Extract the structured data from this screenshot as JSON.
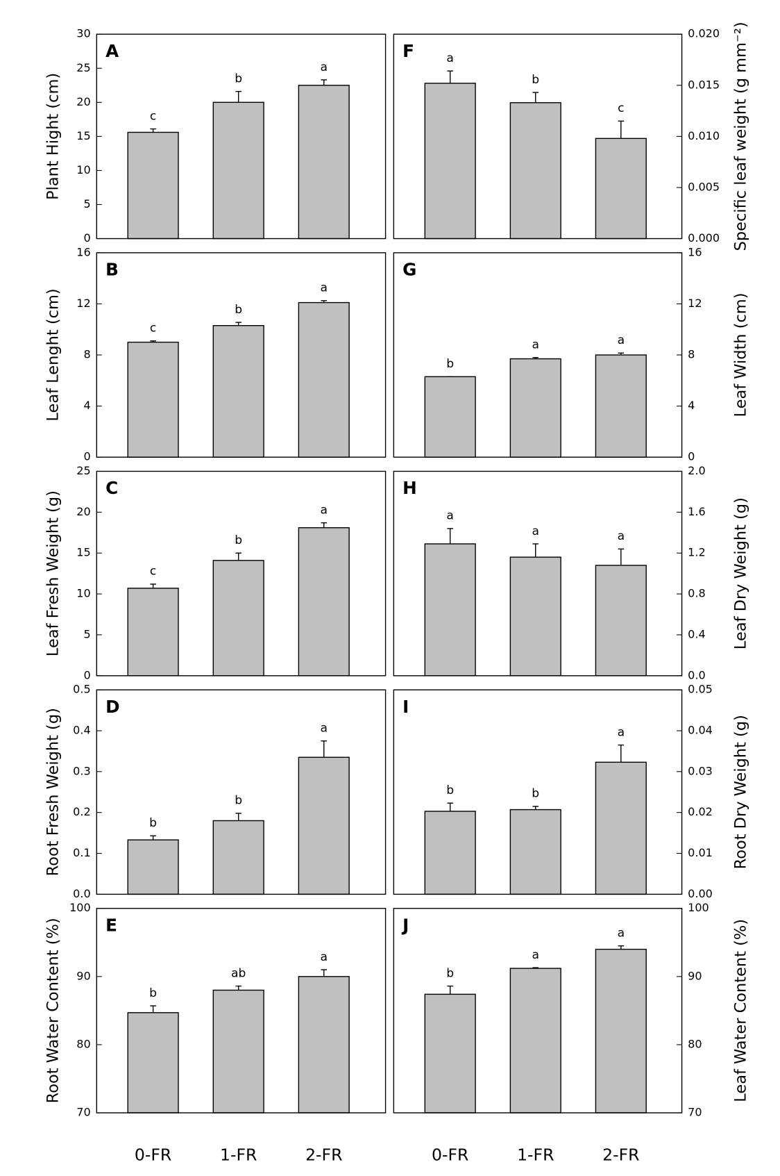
{
  "chart_data": [
    {
      "type": "bar",
      "panel": "A",
      "y_label": "Plant Hight (cm)",
      "ylim": [
        0,
        30
      ],
      "yticks": [
        0,
        5,
        10,
        15,
        20,
        25,
        30
      ],
      "values": [
        15.6,
        20.0,
        22.5
      ],
      "errors": [
        0.5,
        1.6,
        0.8
      ],
      "annotations": [
        "c",
        "b",
        "a"
      ],
      "color": "#c0c0c0"
    },
    {
      "type": "bar",
      "panel": "B",
      "y_label": "Leaf Lenght (cm)",
      "ylim": [
        0,
        16
      ],
      "yticks": [
        0,
        4,
        8,
        12,
        16
      ],
      "values": [
        9.0,
        10.3,
        12.1
      ],
      "errors": [
        0.1,
        0.25,
        0.15
      ],
      "annotations": [
        "c",
        "b",
        "a"
      ],
      "color": "#c0c0c0"
    },
    {
      "type": "bar",
      "panel": "C",
      "y_label": "Leaf Fresh Weight (g)",
      "ylim": [
        0,
        25
      ],
      "yticks": [
        0,
        5,
        10,
        15,
        20,
        25
      ],
      "values": [
        10.7,
        14.1,
        18.1
      ],
      "errors": [
        0.5,
        0.9,
        0.6
      ],
      "annotations": [
        "c",
        "b",
        "a"
      ],
      "color": "#c0c0c0"
    },
    {
      "type": "bar",
      "panel": "D",
      "y_label": "Root Fresh Weight (g)",
      "ylim": [
        0,
        0.5
      ],
      "yticks": [
        {
          "value": 0,
          "label": "0.0"
        },
        0.1,
        0.2,
        0.3,
        0.4,
        0.5
      ],
      "values": [
        0.133,
        0.18,
        0.335
      ],
      "errors": [
        0.01,
        0.018,
        0.04
      ],
      "annotations": [
        "b",
        "b",
        "a"
      ],
      "color": "#c0c0c0"
    },
    {
      "type": "bar",
      "panel": "E",
      "y_label": "Root Water Content (%)",
      "ylim": [
        70,
        100
      ],
      "yticks": [
        70,
        80,
        90,
        100
      ],
      "categories": [
        "0-FR",
        "1-FR",
        "2-FR"
      ],
      "values": [
        84.7,
        88.0,
        90.0
      ],
      "errors": [
        1.0,
        0.6,
        1.0
      ],
      "annotations": [
        "b",
        "ab",
        "a"
      ],
      "color": "#c0c0c0"
    },
    {
      "type": "bar",
      "panel": "F",
      "y_label": "Specific leaf weight (g mm⁻²)",
      "ylim": [
        0,
        0.02
      ],
      "yticks": [
        {
          "value": 0,
          "label": "0.000"
        },
        0.005,
        {
          "value": 0.01,
          "label": "0.010"
        },
        0.015,
        {
          "value": 0.02,
          "label": "0.020"
        }
      ],
      "values": [
        0.0152,
        0.0133,
        0.0098
      ],
      "errors": [
        0.0012,
        0.001,
        0.0017
      ],
      "annotations": [
        "a",
        "b",
        "c"
      ],
      "color": "#c0c0c0"
    },
    {
      "type": "bar",
      "panel": "G",
      "y_label": "Leaf Width (cm)",
      "ylim": [
        0,
        16
      ],
      "yticks": [
        0,
        4,
        8,
        12,
        16
      ],
      "values": [
        6.3,
        7.7,
        8.0
      ],
      "errors": [
        0,
        0.1,
        0.15
      ],
      "annotations": [
        "b",
        "a",
        "a"
      ],
      "color": "#c0c0c0"
    },
    {
      "type": "bar",
      "panel": "H",
      "y_label": "Leaf Dry Weight (g)",
      "ylim": [
        0,
        2
      ],
      "yticks": [
        {
          "value": 0,
          "label": "0.0"
        },
        0.4,
        0.8,
        1.2,
        1.6,
        {
          "value": 2,
          "label": "2.0"
        }
      ],
      "values": [
        1.29,
        1.16,
        1.08
      ],
      "errors": [
        0.15,
        0.13,
        0.16
      ],
      "annotations": [
        "a",
        "a",
        "a"
      ],
      "color": "#c0c0c0"
    },
    {
      "type": "bar",
      "panel": "I",
      "y_label": "Root Dry Weight (g)",
      "ylim": [
        0,
        0.05
      ],
      "yticks": [
        {
          "value": 0,
          "label": "0.00"
        },
        0.01,
        0.02,
        0.03,
        0.04,
        0.05
      ],
      "values": [
        0.0203,
        0.0207,
        0.0323
      ],
      "errors": [
        0.002,
        0.0008,
        0.0042
      ],
      "annotations": [
        "b",
        "b",
        "a"
      ],
      "color": "#c0c0c0"
    },
    {
      "type": "bar",
      "panel": "J",
      "y_label": "Leaf Water Content (%)",
      "ylim": [
        70,
        100
      ],
      "yticks": [
        70,
        80,
        90,
        100
      ],
      "categories": [
        "0-FR",
        "1-FR",
        "2-FR"
      ],
      "values": [
        87.4,
        91.2,
        94.0
      ],
      "errors": [
        1.2,
        0.1,
        0.5
      ],
      "annotations": [
        "b",
        "a",
        "a"
      ],
      "color": "#c0c0c0"
    }
  ]
}
